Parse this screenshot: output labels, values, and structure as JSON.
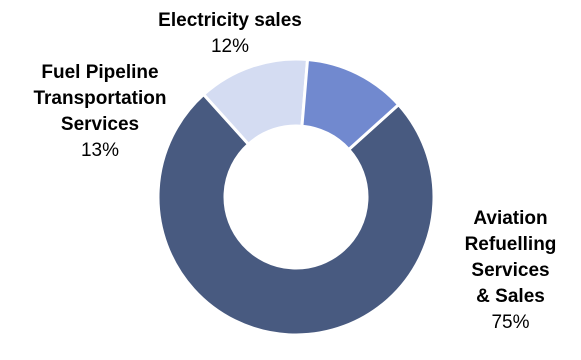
{
  "chart_data": {
    "type": "pie",
    "donut": true,
    "slices": [
      {
        "label": "Aviation Refuelling Services & Sales",
        "label_lines": [
          "Aviation",
          "Refuelling",
          "Services",
          "& Sales"
        ],
        "value": 75,
        "value_label": "75%",
        "color": "#485a80"
      },
      {
        "label": "Fuel Pipeline Transportation Services",
        "label_lines": [
          "Fuel Pipeline",
          "Transportation",
          "Services"
        ],
        "value": 13,
        "value_label": "13%",
        "color": "#d4dcf2"
      },
      {
        "label": "Electricity sales",
        "label_lines": [
          "Electricity sales"
        ],
        "value": 12,
        "value_label": "12%",
        "color": "#7189cf"
      }
    ]
  }
}
